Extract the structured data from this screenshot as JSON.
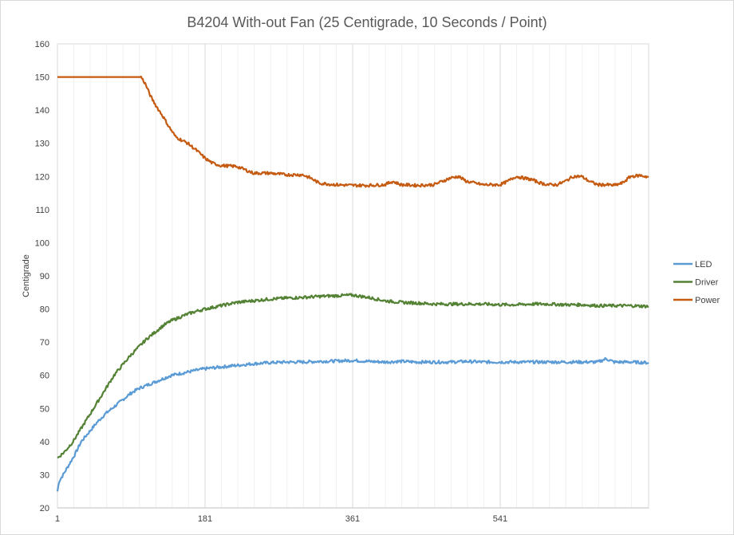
{
  "chart_data": {
    "type": "line",
    "title": "B4204 With-out Fan (25 Centigrade, 10 Seconds / Point)",
    "xlabel": "",
    "ylabel": "Centigrade",
    "xlim": [
      1,
      722
    ],
    "ylim": [
      20,
      160
    ],
    "yticks": [
      20,
      30,
      40,
      50,
      60,
      70,
      80,
      90,
      100,
      110,
      120,
      130,
      140,
      150,
      160
    ],
    "xticks": [
      1,
      181,
      361,
      541
    ],
    "grid": true,
    "legend": "right",
    "series": [
      {
        "name": "LED",
        "color": "#5b9bd5",
        "points": [
          [
            1,
            25
          ],
          [
            3,
            28
          ],
          [
            8,
            30
          ],
          [
            15,
            33
          ],
          [
            22,
            36
          ],
          [
            30,
            40
          ],
          [
            40,
            43
          ],
          [
            50,
            46
          ],
          [
            60,
            48.5
          ],
          [
            70,
            50.5
          ],
          [
            80,
            52.5
          ],
          [
            90,
            54.5
          ],
          [
            100,
            56
          ],
          [
            110,
            57
          ],
          [
            120,
            58
          ],
          [
            130,
            59
          ],
          [
            140,
            60
          ],
          [
            150,
            60.5
          ],
          [
            160,
            61
          ],
          [
            170,
            61.5
          ],
          [
            181,
            62
          ],
          [
            200,
            62.5
          ],
          [
            220,
            63
          ],
          [
            240,
            63.5
          ],
          [
            260,
            63.8
          ],
          [
            280,
            64
          ],
          [
            300,
            64
          ],
          [
            320,
            64.2
          ],
          [
            340,
            64.3
          ],
          [
            361,
            64.5
          ],
          [
            380,
            64.2
          ],
          [
            400,
            64
          ],
          [
            420,
            64.2
          ],
          [
            440,
            64
          ],
          [
            460,
            64
          ],
          [
            480,
            64
          ],
          [
            500,
            64.2
          ],
          [
            520,
            64
          ],
          [
            541,
            64
          ],
          [
            560,
            64
          ],
          [
            580,
            64
          ],
          [
            600,
            64
          ],
          [
            620,
            64
          ],
          [
            640,
            64
          ],
          [
            660,
            64
          ],
          [
            670,
            65
          ],
          [
            680,
            64
          ],
          [
            700,
            64
          ],
          [
            722,
            63.8
          ]
        ]
      },
      {
        "name": "Driver",
        "color": "#548235",
        "points": [
          [
            1,
            35
          ],
          [
            10,
            37
          ],
          [
            20,
            40
          ],
          [
            30,
            44
          ],
          [
            40,
            48
          ],
          [
            50,
            52
          ],
          [
            60,
            56
          ],
          [
            70,
            60
          ],
          [
            80,
            63
          ],
          [
            90,
            66
          ],
          [
            100,
            68.5
          ],
          [
            110,
            71
          ],
          [
            120,
            73
          ],
          [
            130,
            75
          ],
          [
            140,
            76.5
          ],
          [
            150,
            77.5
          ],
          [
            160,
            78.5
          ],
          [
            170,
            79.3
          ],
          [
            181,
            80
          ],
          [
            200,
            81
          ],
          [
            220,
            82
          ],
          [
            240,
            82.5
          ],
          [
            260,
            83
          ],
          [
            280,
            83.3
          ],
          [
            300,
            83.5
          ],
          [
            320,
            83.8
          ],
          [
            340,
            84
          ],
          [
            361,
            84.2
          ],
          [
            380,
            83.5
          ],
          [
            400,
            82.5
          ],
          [
            420,
            82
          ],
          [
            440,
            81.8
          ],
          [
            460,
            81.5
          ],
          [
            480,
            81.5
          ],
          [
            500,
            81.5
          ],
          [
            520,
            81.5
          ],
          [
            541,
            81.3
          ],
          [
            560,
            81.3
          ],
          [
            580,
            81.5
          ],
          [
            600,
            81.5
          ],
          [
            620,
            81.3
          ],
          [
            640,
            81.3
          ],
          [
            660,
            81
          ],
          [
            680,
            81
          ],
          [
            700,
            81
          ],
          [
            722,
            80.8
          ]
        ]
      },
      {
        "name": "Power",
        "color": "#c55a11",
        "points": [
          [
            1,
            150
          ],
          [
            100,
            150
          ],
          [
            103,
            150
          ],
          [
            108,
            148
          ],
          [
            115,
            144
          ],
          [
            122,
            141
          ],
          [
            130,
            138
          ],
          [
            137,
            135
          ],
          [
            145,
            132
          ],
          [
            152,
            131
          ],
          [
            160,
            130
          ],
          [
            170,
            128
          ],
          [
            181,
            125.5
          ],
          [
            190,
            124
          ],
          [
            200,
            123.3
          ],
          [
            220,
            123
          ],
          [
            230,
            122
          ],
          [
            240,
            121
          ],
          [
            260,
            121
          ],
          [
            280,
            120.5
          ],
          [
            300,
            120.5
          ],
          [
            310,
            119.5
          ],
          [
            320,
            118
          ],
          [
            340,
            117.5
          ],
          [
            361,
            117.3
          ],
          [
            380,
            117.3
          ],
          [
            400,
            117.5
          ],
          [
            410,
            118.5
          ],
          [
            420,
            117.5
          ],
          [
            440,
            117.3
          ],
          [
            460,
            117.5
          ],
          [
            470,
            118.5
          ],
          [
            480,
            119.5
          ],
          [
            490,
            120
          ],
          [
            500,
            118.5
          ],
          [
            520,
            117.5
          ],
          [
            541,
            117.5
          ],
          [
            550,
            118.5
          ],
          [
            560,
            120
          ],
          [
            570,
            119.5
          ],
          [
            580,
            119
          ],
          [
            590,
            118
          ],
          [
            600,
            117.5
          ],
          [
            610,
            117.5
          ],
          [
            620,
            118.5
          ],
          [
            630,
            120
          ],
          [
            640,
            120
          ],
          [
            650,
            118.5
          ],
          [
            660,
            117.5
          ],
          [
            670,
            117.5
          ],
          [
            680,
            117.3
          ],
          [
            690,
            118
          ],
          [
            700,
            120
          ],
          [
            712,
            120.3
          ],
          [
            722,
            119.8
          ]
        ]
      }
    ]
  }
}
